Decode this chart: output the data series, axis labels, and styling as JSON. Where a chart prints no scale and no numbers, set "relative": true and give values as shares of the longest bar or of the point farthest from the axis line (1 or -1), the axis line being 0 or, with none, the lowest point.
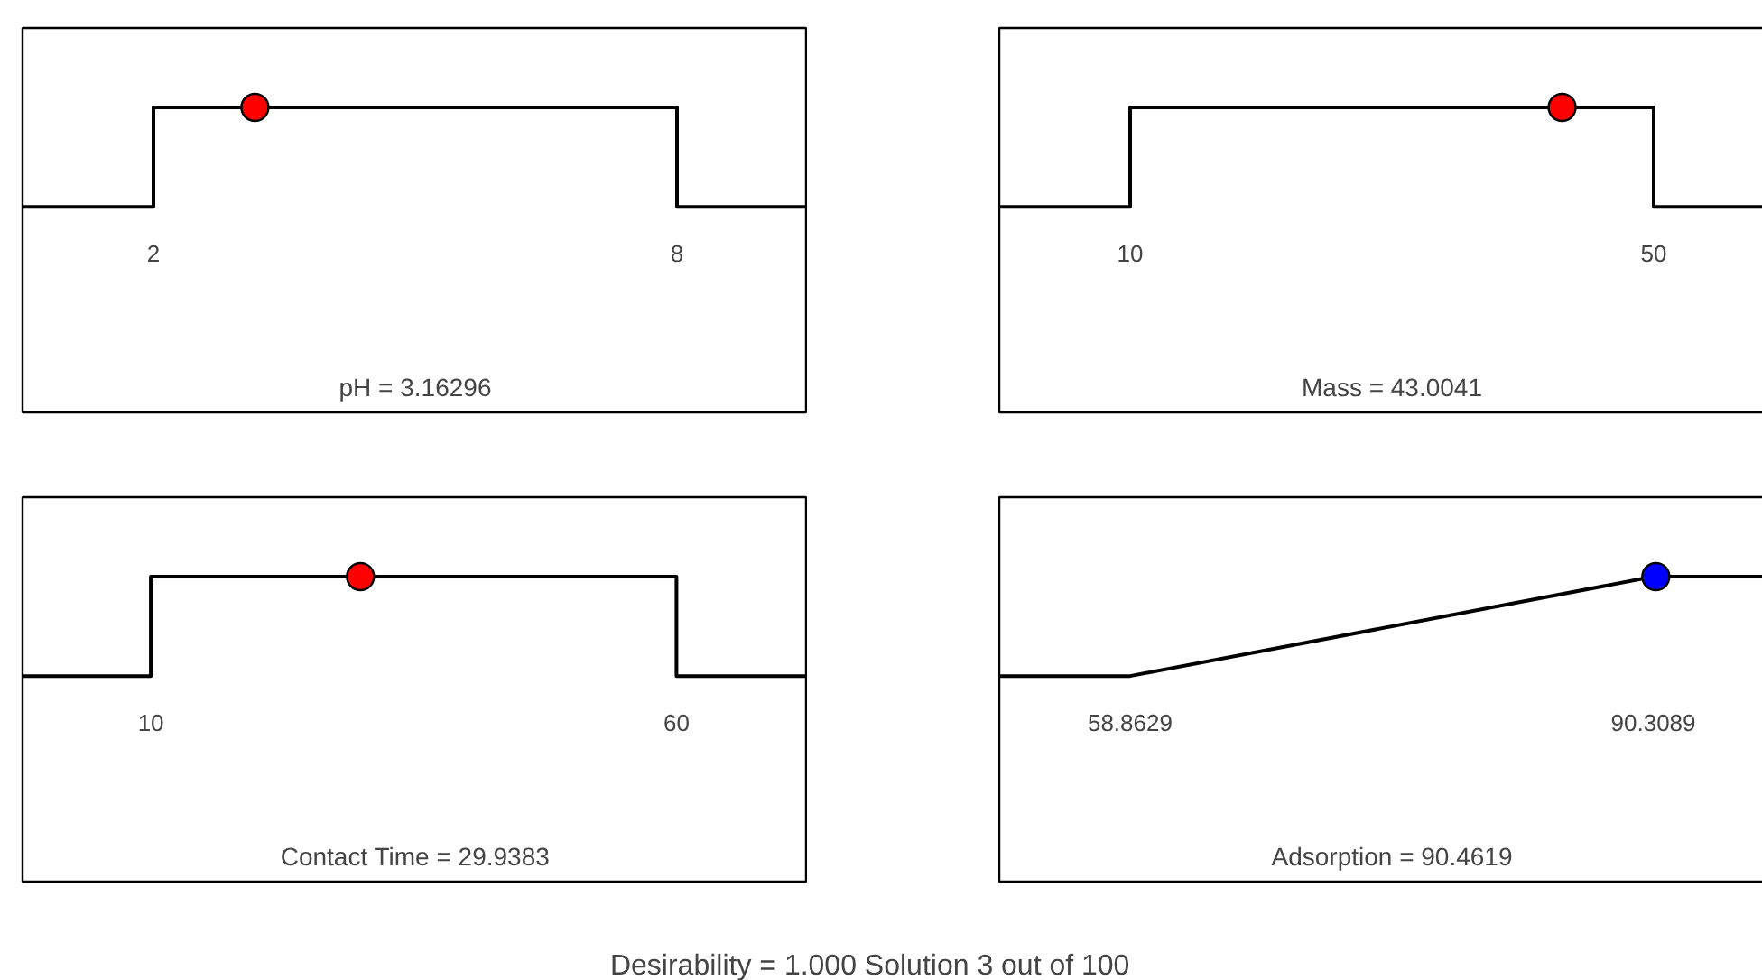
{
  "chart_data": [
    {
      "type": "line",
      "relative": true,
      "xlabel": "pH = 3.16296",
      "xlim": [
        0.5,
        9.5
      ],
      "xticks": [
        2,
        8
      ],
      "grid": false,
      "series": [
        {
          "type": "line",
          "color": "#000000",
          "x": [
            0.5,
            2,
            2,
            8,
            8,
            9.5
          ],
          "values": [
            0,
            0,
            1,
            1,
            0,
            0
          ]
        },
        {
          "type": "scatter",
          "color": "#ff0000",
          "marker": "circle",
          "x": [
            3.16296
          ],
          "values": [
            1
          ]
        }
      ]
    },
    {
      "type": "line",
      "relative": true,
      "xlabel": "Mass = 43.0041",
      "xlim": [
        0,
        60
      ],
      "xticks": [
        10,
        50
      ],
      "grid": false,
      "series": [
        {
          "type": "line",
          "color": "#000000",
          "x": [
            0,
            10,
            10,
            50,
            50,
            60
          ],
          "values": [
            0,
            0,
            1,
            1,
            0,
            0
          ]
        },
        {
          "type": "scatter",
          "color": "#ff0000",
          "marker": "circle",
          "x": [
            43.0041
          ],
          "values": [
            1
          ]
        }
      ]
    },
    {
      "type": "line",
      "relative": true,
      "xlabel": "Contact Time = 29.9383",
      "xlim": [
        -2.2,
        72.5
      ],
      "xticks": [
        10,
        60
      ],
      "grid": false,
      "series": [
        {
          "type": "line",
          "color": "#000000",
          "x": [
            -2.2,
            10,
            10,
            60,
            60,
            72.5
          ],
          "values": [
            0,
            0,
            1,
            1,
            0,
            0
          ]
        },
        {
          "type": "scatter",
          "color": "#ff0000",
          "marker": "circle",
          "x": [
            29.9383
          ],
          "values": [
            1
          ]
        }
      ]
    },
    {
      "type": "line",
      "relative": true,
      "xlabel": "Adsorption = 90.4619",
      "xlim": [
        51,
        98.2
      ],
      "xticks": [
        58.8629,
        90.3089
      ],
      "grid": false,
      "series": [
        {
          "type": "line",
          "color": "#000000",
          "x": [
            51,
            58.8629,
            90.3089,
            98.2
          ],
          "values": [
            0,
            0,
            1,
            1
          ]
        },
        {
          "type": "scatter",
          "color": "#0000ff",
          "marker": "circle",
          "x": [
            90.4619
          ],
          "values": [
            1
          ]
        }
      ]
    },
    {
      "type": "other",
      "title": "Desirability = 1.000    Solution 3 out of 100"
    }
  ]
}
